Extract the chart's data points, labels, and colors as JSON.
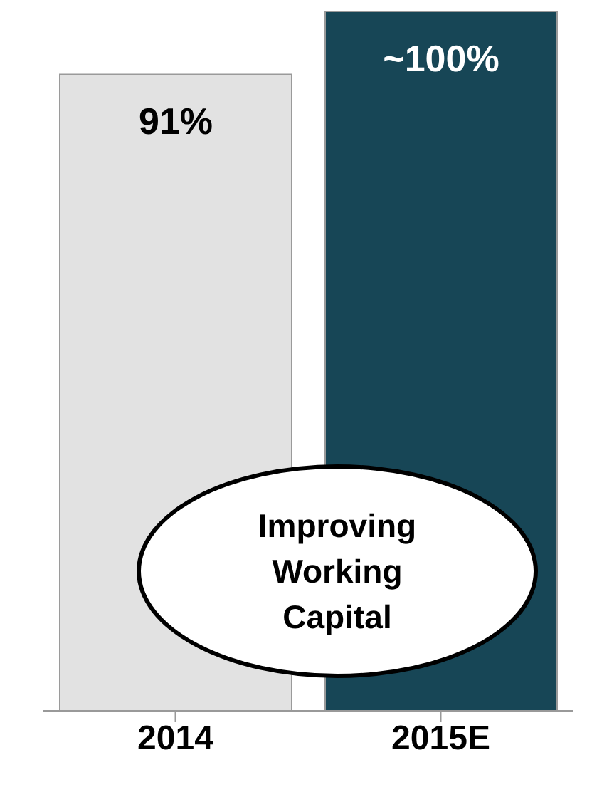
{
  "chart_data": {
    "type": "bar",
    "categories": [
      "2014",
      "2015E"
    ],
    "values": [
      91,
      100
    ],
    "colors": [
      "#e2e2e2",
      "#174656"
    ],
    "value_labels": [
      "91%",
      "~100%"
    ],
    "annotations": [
      "Improving Working Capital"
    ],
    "tick_labels": "x"
  }
}
